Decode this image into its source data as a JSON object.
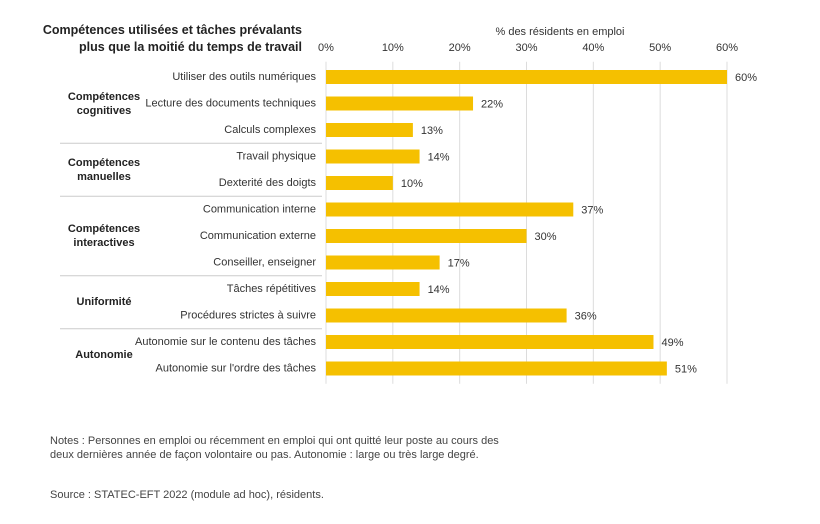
{
  "chart_data": {
    "type": "bar",
    "orientation": "horizontal",
    "title": "Compétences utilisées et tâches prévalants plus que la moitié du temps de travail",
    "x_label": "% des résidents en emploi",
    "color": "#f5c000",
    "xlim": [
      0,
      60
    ],
    "xticks": [
      {
        "value": 0,
        "label": "0%"
      },
      {
        "value": 10,
        "label": "10%"
      },
      {
        "value": 20,
        "label": "20%"
      },
      {
        "value": 30,
        "label": "30%"
      },
      {
        "value": 40,
        "label": "40%"
      },
      {
        "value": 50,
        "label": "50%"
      },
      {
        "value": 60,
        "label": "60%"
      }
    ],
    "grid": true,
    "groups": [
      {
        "name": "Compétences cognitives",
        "categories": [
          "Utiliser des outils numériques",
          "Lecture des documents techniques",
          "Calculs complexes"
        ],
        "values": [
          60,
          22,
          13
        ],
        "value_labels": [
          "60%",
          "22%",
          "13%"
        ]
      },
      {
        "name": "Compétences manuelles",
        "categories": [
          "Travail physique",
          "Dexterité des doigts"
        ],
        "values": [
          14,
          10
        ],
        "value_labels": [
          "14%",
          "10%"
        ]
      },
      {
        "name": "Compétences interactives",
        "categories": [
          "Communication interne",
          "Communication externe",
          "Conseiller, enseigner"
        ],
        "values": [
          37,
          30,
          17
        ],
        "value_labels": [
          "37%",
          "30%",
          "17%"
        ]
      },
      {
        "name": "Uniformité",
        "categories": [
          "Tâches répétitives",
          "Procédures strictes à suivre"
        ],
        "values": [
          14,
          36
        ],
        "value_labels": [
          "14%",
          "36%"
        ]
      },
      {
        "name": "Autonomie",
        "categories": [
          "Autonomie sur le contenu des tâches",
          "Autonomie sur l'ordre des tâches"
        ],
        "values": [
          49,
          51
        ],
        "value_labels": [
          "49%",
          "51%"
        ]
      }
    ]
  },
  "notes": "Notes : Personnes en emploi ou récemment en emploi qui ont quitté leur poste au cours des deux dernières année de façon volontaire ou pas. Autonomie : large ou très large degré.",
  "source": "Source : STATEC-EFT 2022 (module ad hoc), résidents."
}
